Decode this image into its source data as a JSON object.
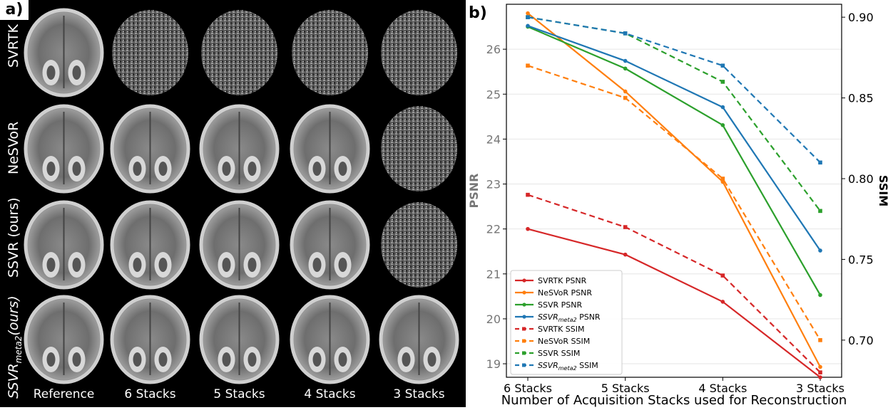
{
  "panel_a": {
    "label": "a)",
    "row_labels": [
      "SVRTK",
      "NeSVoR",
      "SSVR (ours)",
      "SSVR_meta2 (ours)"
    ],
    "row_label_parts": [
      {
        "main": "SVRTK",
        "sub": "",
        "rest": ""
      },
      {
        "main": "NeSVoR",
        "sub": "",
        "rest": ""
      },
      {
        "main": "SSVR (ours)",
        "sub": "",
        "rest": ""
      },
      {
        "main": "SSVR",
        "sub": "meta2",
        "rest": "(ours)"
      }
    ],
    "column_labels": [
      "Reference",
      "6 Stacks",
      "5 Stacks",
      "4 Stacks",
      "3 Stacks"
    ]
  },
  "panel_b": {
    "label": "b)"
  },
  "chart_data": {
    "type": "line",
    "xlabel": "Number of Acquisition Stacks used for Reconstruction",
    "ylabel_left": "PSNR",
    "ylabel_right": "SSIM",
    "categories": [
      "6 Stacks",
      "5 Stacks",
      "4 Stacks",
      "3 Stacks"
    ],
    "ylim_left": [
      18.7,
      27.0
    ],
    "ylim_right": [
      0.677,
      0.908
    ],
    "yticks_left": [
      19,
      20,
      21,
      22,
      23,
      24,
      25,
      26
    ],
    "yticks_right": [
      0.7,
      0.75,
      0.8,
      0.85,
      0.9
    ],
    "ytick_labels_right": [
      "0.70",
      "0.75",
      "0.80",
      "0.85",
      "0.90"
    ],
    "grid": true,
    "legend_position": "lower-left",
    "series": [
      {
        "name": "SVRTK PSNR",
        "axis": "left",
        "style": "solid",
        "color": "#d62728",
        "values": [
          22.0,
          21.43,
          20.38,
          18.7
        ]
      },
      {
        "name": "NeSVoR PSNR",
        "axis": "left",
        "style": "solid",
        "color": "#ff7f0e",
        "values": [
          26.8,
          25.06,
          23.05,
          18.93
        ]
      },
      {
        "name": "SSVR PSNR",
        "axis": "left",
        "style": "solid",
        "color": "#2ca02c",
        "values": [
          26.5,
          25.57,
          24.31,
          20.53
        ]
      },
      {
        "name": "SSVR_meta2 PSNR",
        "axis": "left",
        "style": "solid",
        "color": "#1f77b4",
        "values": [
          26.52,
          25.74,
          24.71,
          21.52
        ]
      },
      {
        "name": "SVRTK SSIM",
        "axis": "right",
        "style": "dashed",
        "color": "#d62728",
        "values": [
          0.79,
          0.77,
          0.74,
          0.68
        ]
      },
      {
        "name": "NeSVoR SSIM",
        "axis": "right",
        "style": "dashed",
        "color": "#ff7f0e",
        "values": [
          0.87,
          0.85,
          0.8,
          0.7
        ]
      },
      {
        "name": "SSVR SSIM",
        "axis": "right",
        "style": "dashed",
        "color": "#2ca02c",
        "values": [
          0.9,
          0.89,
          0.86,
          0.78
        ]
      },
      {
        "name": "SSVR_meta2 SSIM",
        "axis": "right",
        "style": "dashed",
        "color": "#1f77b4",
        "values": [
          0.9,
          0.89,
          0.87,
          0.81
        ]
      }
    ],
    "legend_entries": [
      {
        "main": "SVRTK PSNR",
        "sub": "",
        "rest": ""
      },
      {
        "main": "NeSVoR PSNR",
        "sub": "",
        "rest": ""
      },
      {
        "main": "SSVR PSNR",
        "sub": "",
        "rest": ""
      },
      {
        "main": "SSVR",
        "sub": "meta2",
        "rest": " PSNR"
      },
      {
        "main": "SVRTK SSIM",
        "sub": "",
        "rest": ""
      },
      {
        "main": "NeSVoR SSIM",
        "sub": "",
        "rest": ""
      },
      {
        "main": "SSVR SSIM",
        "sub": "",
        "rest": ""
      },
      {
        "main": "SSVR",
        "sub": "meta2",
        "rest": " SSIM"
      }
    ]
  }
}
